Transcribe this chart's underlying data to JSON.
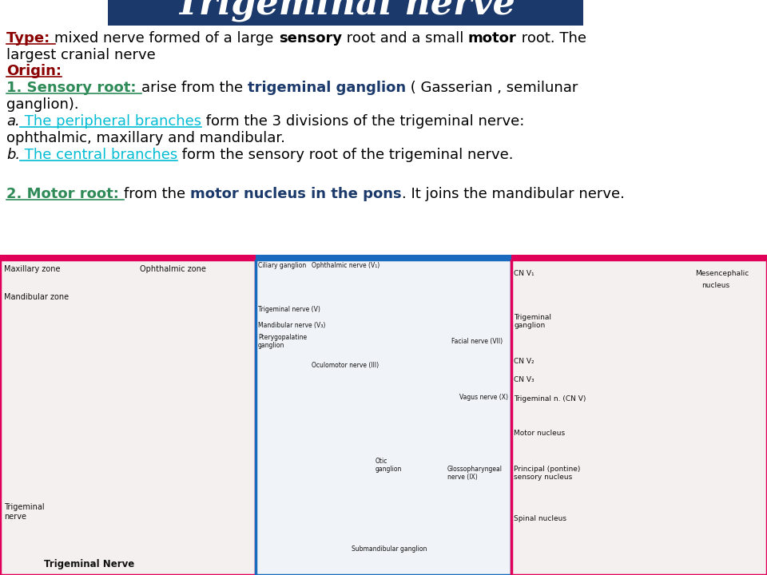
{
  "title": "Trigeminal nerve",
  "title_bg_color": "#1b3a6b",
  "title_text_color": "#ffffff",
  "bg_color": "#ffffff",
  "font_size": 13,
  "title_font_size": 32,
  "lines": [
    [
      {
        "t": "Type: ",
        "c": "#8b0000",
        "b": true,
        "u": true
      },
      {
        "t": "mixed nerve formed of a large ",
        "c": "#000000"
      },
      {
        "t": "sensory",
        "c": "#000000",
        "b": true
      },
      {
        "t": " root and a small ",
        "c": "#000000"
      },
      {
        "t": "motor",
        "c": "#000000",
        "b": true
      },
      {
        "t": " root. The",
        "c": "#000000"
      }
    ],
    [
      {
        "t": "largest cranial nerve",
        "c": "#000000"
      }
    ],
    [
      {
        "t": "Origin:",
        "c": "#8b0000",
        "b": true,
        "u": true
      }
    ],
    [
      {
        "t": "1. Sensory root: ",
        "c": "#2e8b57",
        "b": true,
        "u": true
      },
      {
        "t": "arise from the ",
        "c": "#000000"
      },
      {
        "t": "trigeminal ganglion",
        "c": "#1b3a6b",
        "b": true
      },
      {
        "t": " ( Gasserian , semilunar",
        "c": "#000000"
      }
    ],
    [
      {
        "t": "ganglion).",
        "c": "#000000"
      }
    ],
    [
      {
        "t": "a.",
        "c": "#000000",
        "i": true
      },
      {
        "t": " The peripheral branches",
        "c": "#00bcd4",
        "u": true
      },
      {
        "t": " form the 3 divisions of the trigeminal nerve:",
        "c": "#000000"
      }
    ],
    [
      {
        "t": "ophthalmic, maxillary and mandibular.",
        "c": "#000000"
      }
    ],
    [
      {
        "t": "b.",
        "c": "#000000",
        "i": true
      },
      {
        "t": " The central branches",
        "c": "#00bcd4",
        "u": true
      },
      {
        "t": " form the sensory root of the trigeminal nerve.",
        "c": "#000000"
      }
    ],
    [],
    [
      {
        "t": "2. Motor root: ",
        "c": "#2e8b57",
        "b": true,
        "u": true
      },
      {
        "t": "from the ",
        "c": "#000000"
      },
      {
        "t": "motor nucleus in the pons",
        "c": "#1b3a6b",
        "b": true
      },
      {
        "t": ". It joins the mandibular nerve.",
        "c": "#000000"
      }
    ]
  ],
  "panel1_border": "#e0005a",
  "panel2_border": "#1a6bbd",
  "panel3_border": "#e0005a",
  "sep1_color": "#e0005a",
  "sep2_color": "#1a6bbd",
  "sep3_color": "#e0005a"
}
